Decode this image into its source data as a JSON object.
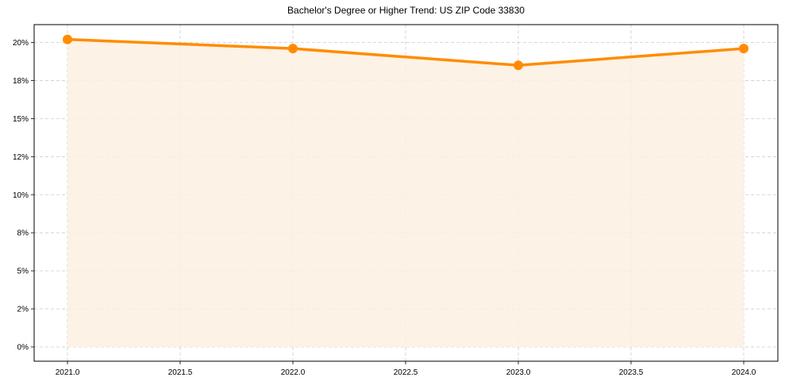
{
  "chart_data": {
    "type": "line",
    "title": "Bachelor's Degree or Higher Trend: US ZIP Code 33830",
    "xlabel": "",
    "ylabel": "",
    "x": [
      2021.0,
      2022.0,
      2023.0,
      2024.0
    ],
    "series": [
      {
        "name": "Bachelor's Degree or Higher",
        "values": [
          20.2,
          19.6,
          18.5,
          19.6
        ],
        "color": "#ff8c00",
        "fill_color": "#fdf0e2",
        "marker": "circle"
      }
    ],
    "xticks": [
      "2021.0",
      "2021.5",
      "2022.0",
      "2022.5",
      "2023.0",
      "2023.5",
      "2024.0"
    ],
    "xtick_values": [
      2021.0,
      2021.5,
      2022.0,
      2022.5,
      2023.0,
      2023.5,
      2024.0
    ],
    "yticks": [
      "0%",
      "2%",
      "5%",
      "8%",
      "10%",
      "12%",
      "15%",
      "18%",
      "20%"
    ],
    "ytick_values": [
      0,
      2.5,
      5,
      7.5,
      10,
      12.5,
      15,
      17.5,
      20
    ],
    "xlim": [
      2020.85,
      2024.16
    ],
    "ylim": [
      -1.0,
      21.1
    ],
    "grid": true,
    "legend": null
  }
}
